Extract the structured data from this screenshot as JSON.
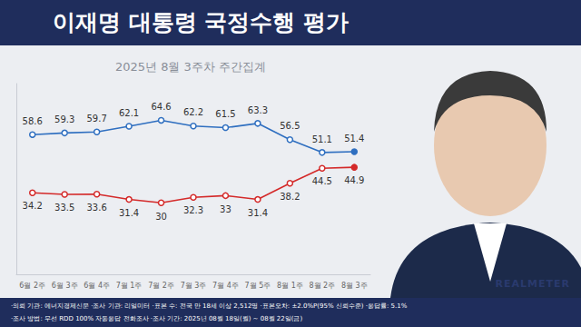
{
  "chart_data": {
    "type": "line",
    "title": "이재명 대통령 국정수행 평가",
    "subtitle": "2025년 8월 3주차 주간집계",
    "categories": [
      "6월 2주",
      "6월 3주",
      "6월 4주",
      "7월 1주",
      "7월 2주",
      "7월 3주",
      "7월 4주",
      "7월 5주",
      "8월 1주",
      "8월 2주",
      "8월 3주"
    ],
    "series": [
      {
        "color": "#2f6fc0",
        "values": [
          58.6,
          59.3,
          59.7,
          62.1,
          64.6,
          62.2,
          61.5,
          63.3,
          56.5,
          51.1,
          51.4
        ]
      },
      {
        "color": "#d42a2a",
        "values": [
          34.2,
          33.5,
          33.6,
          31.4,
          30.0,
          32.3,
          33.0,
          31.4,
          38.2,
          44.5,
          44.9
        ]
      }
    ],
    "ylim": [
      0,
      80
    ],
    "yticks": [],
    "grid": false,
    "tick_labels": "x",
    "data_labels": true,
    "marker": "circle",
    "footer": [
      "·의뢰 기관: 에너지경제신문 ·조사 기관: 리얼미터 ·표본 수: 전국 만 18세 이상 2,512명 ·표본오차: ±2.0%P(95% 신뢰수준) ·응답률: 5.1%",
      "·조사 방법: 무선 RDD 100% 자동응답 전화조사 ·조사 기간: 2025년 08월 18일(월) ~ 08월 22일(금)"
    ],
    "logo": "REALMETER"
  }
}
